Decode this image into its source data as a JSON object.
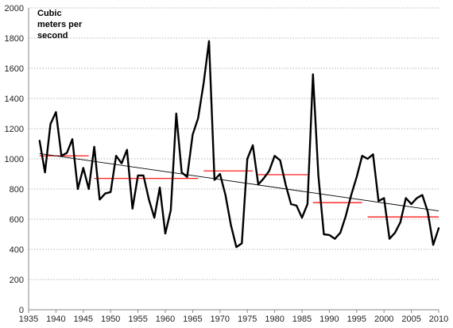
{
  "chart_data": {
    "type": "line",
    "title": "",
    "xlabel": "",
    "ylabel_lines": [
      "Cubic",
      "meters per",
      "second"
    ],
    "xlim": [
      1935,
      2010
    ],
    "ylim": [
      0,
      2000
    ],
    "x_ticks": [
      1935,
      1940,
      1945,
      1950,
      1955,
      1960,
      1965,
      1970,
      1975,
      1980,
      1985,
      1990,
      1995,
      2000,
      2005,
      2010
    ],
    "y_ticks": [
      0,
      200,
      400,
      600,
      800,
      1000,
      1200,
      1400,
      1600,
      1800,
      2000
    ],
    "grid": "horizontal",
    "legend": "none",
    "series": [
      {
        "color": "#000000",
        "x": [
          1937,
          1938,
          1939,
          1940,
          1941,
          1942,
          1943,
          1944,
          1945,
          1946,
          1947,
          1948,
          1949,
          1950,
          1951,
          1952,
          1953,
          1954,
          1955,
          1956,
          1957,
          1958,
          1959,
          1960,
          1961,
          1962,
          1963,
          1964,
          1965,
          1966,
          1967,
          1968,
          1969,
          1970,
          1971,
          1972,
          1973,
          1974,
          1975,
          1976,
          1977,
          1978,
          1979,
          1980,
          1981,
          1982,
          1983,
          1984,
          1985,
          1986,
          1987,
          1988,
          1989,
          1990,
          1991,
          1992,
          1993,
          1994,
          1995,
          1996,
          1997,
          1998,
          1999,
          2000,
          2001,
          2002,
          2003,
          2004,
          2005,
          2006,
          2007,
          2008,
          2009,
          2010
        ],
        "y": [
          1120,
          910,
          1230,
          1310,
          1020,
          1040,
          1130,
          800,
          940,
          800,
          1080,
          730,
          770,
          780,
          1020,
          970,
          1060,
          670,
          890,
          890,
          730,
          610,
          810,
          505,
          660,
          1300,
          910,
          880,
          1160,
          1270,
          1500,
          1780,
          860,
          900,
          760,
          560,
          415,
          440,
          1000,
          1090,
          830,
          870,
          920,
          1020,
          990,
          830,
          700,
          690,
          610,
          700,
          1560,
          890,
          500,
          495,
          470,
          510,
          620,
          760,
          880,
          1020,
          1000,
          1030,
          720,
          740,
          470,
          510,
          580,
          740,
          700,
          740,
          760,
          650,
          430,
          540
        ]
      }
    ],
    "trend_line": {
      "color": "#000000",
      "x": [
        1937,
        2010
      ],
      "y": [
        1035,
        655
      ]
    },
    "decadal_means": {
      "color": "#ff0000",
      "segments": [
        {
          "x": [
            1937,
            1946
          ],
          "y": 1020
        },
        {
          "x": [
            1947,
            1966
          ],
          "y": 870
        },
        {
          "x": [
            1967,
            1976
          ],
          "y": 920
        },
        {
          "x": [
            1977,
            1986
          ],
          "y": 895
        },
        {
          "x": [
            1987,
            1996
          ],
          "y": 710
        },
        {
          "x": [
            1997,
            2010
          ],
          "y": 615
        }
      ]
    }
  }
}
